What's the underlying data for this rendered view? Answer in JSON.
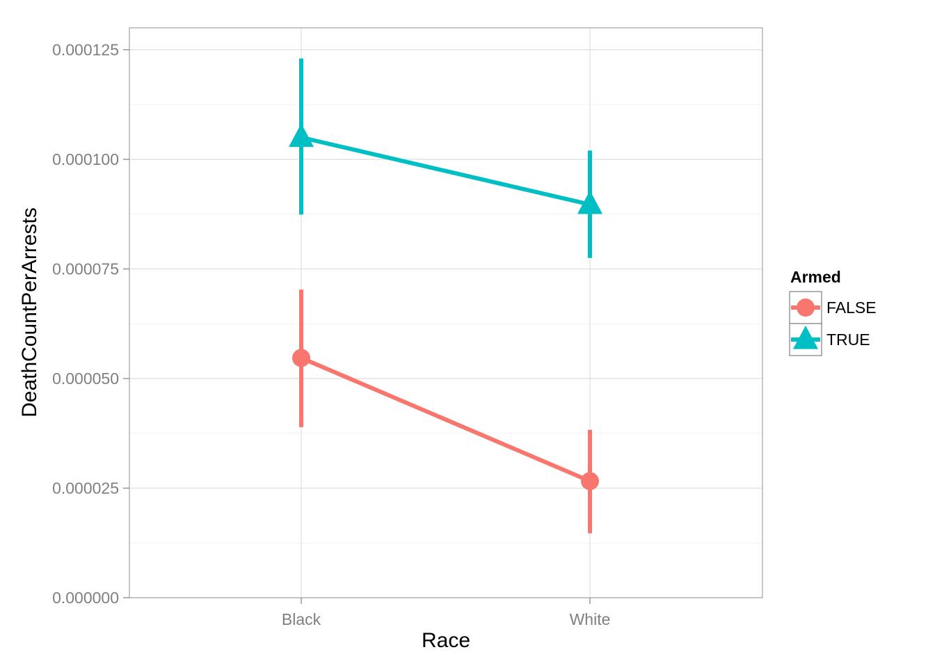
{
  "chart_data": {
    "type": "line",
    "title": "",
    "xlabel": "Race",
    "ylabel": "DeathCountPerArrests",
    "categories": [
      "Black",
      "White"
    ],
    "ylim": [
      0,
      0.00013
    ],
    "y_ticks": [
      0,
      2.5e-05,
      5e-05,
      7.5e-05,
      0.0001,
      0.000125
    ],
    "y_tick_labels": [
      "0.000000",
      "0.000025",
      "0.000050",
      "0.000075",
      "0.000100",
      "0.000125"
    ],
    "grid": true,
    "legend": {
      "title": "Armed",
      "position": "right"
    },
    "series": [
      {
        "name": "FALSE",
        "color": "#f8766d",
        "marker": "circle",
        "values": [
          5.47e-05,
          2.66e-05
        ],
        "error_low": [
          3.89e-05,
          1.47e-05
        ],
        "error_high": [
          7.03e-05,
          3.83e-05
        ]
      },
      {
        "name": "TRUE",
        "color": "#00bfc4",
        "marker": "triangle",
        "values": [
          0.000105,
          8.97e-05
        ],
        "error_low": [
          8.74e-05,
          7.75e-05
        ],
        "error_high": [
          0.000123,
          0.000102
        ]
      }
    ]
  }
}
